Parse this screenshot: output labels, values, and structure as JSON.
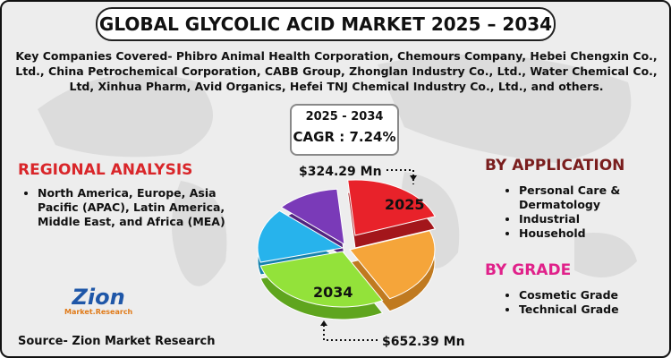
{
  "header": {
    "title": "GLOBAL GLYCOLIC ACID MARKET 2025 – 2034"
  },
  "key_companies": "Key Companies Covered- Phibro Animal Health Corporation, Chemours Company, Hebei Chengxin Co., Ltd., China Petrochemical Corporation, CABB Group, Zhonglan Industry Co., Ltd., Water Chemical Co., Ltd, Xinhua Pharm, Avid Organics, Hefei TNJ Chemical Industry Co., Ltd., and others.",
  "cagr": {
    "period": "2025 - 2034",
    "label": "CAGR : 7.24%"
  },
  "regional": {
    "title": "REGIONAL ANALYSIS",
    "items": [
      "North America, Europe, Asia Pacific (APAC), Latin America, Middle East, and Africa (MEA)"
    ]
  },
  "pie": {
    "start_label": "2025",
    "end_label": "2034",
    "start_value": "$324.29 Mn",
    "end_value": "$652.39 Mn"
  },
  "application": {
    "title": "BY APPLICATION",
    "items": [
      "Personal Care & Dermatology",
      "Industrial",
      "Household"
    ]
  },
  "grade": {
    "title": "BY GRADE",
    "items": [
      "Cosmetic Grade",
      "Technical Grade"
    ]
  },
  "logo": {
    "name": "Zion",
    "sub": "Market.Research"
  },
  "source": "Source- Zion Market Research"
}
